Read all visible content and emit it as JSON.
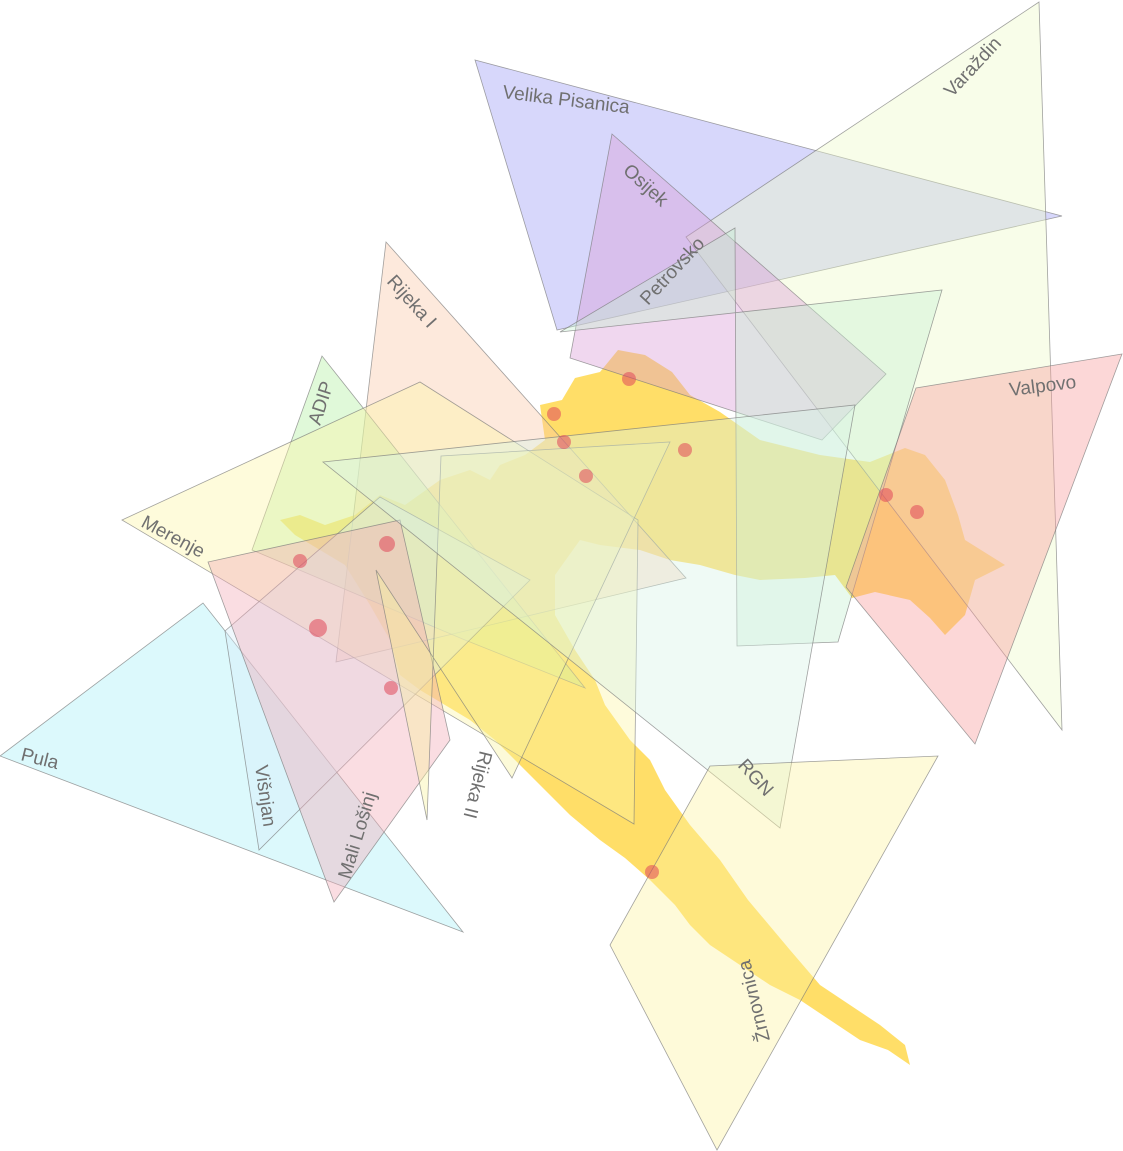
{
  "map": {
    "country_fill": "#ffd84d",
    "point_color": "#e0475a",
    "stations": [
      {
        "name": "Velika Pisanica",
        "color": "#9a9af5"
      },
      {
        "name": "Varaždin",
        "color": "#eef9c8"
      },
      {
        "name": "Osijek",
        "color": "#d99ad8"
      },
      {
        "name": "Petrovsko",
        "color": "#c6efd2"
      },
      {
        "name": "Rijeka I",
        "color": "#f9c9a8"
      },
      {
        "name": "Valpovo",
        "color": "#f79a9a"
      },
      {
        "name": "ADIP",
        "color": "#b2efa0"
      },
      {
        "name": "Merenje",
        "color": "#fdf5a6"
      },
      {
        "name": "Pula",
        "color": "#a8f1f7"
      },
      {
        "name": "Višnjan",
        "color": "#d8eef9"
      },
      {
        "name": "Mali Lošinj",
        "color": "#f2a9b6"
      },
      {
        "name": "Rijeka II",
        "color": "#f7f39e"
      },
      {
        "name": "RGN",
        "color": "#d7f2e7"
      },
      {
        "name": "Žrnovnica",
        "color": "#fcf2a1"
      }
    ]
  }
}
